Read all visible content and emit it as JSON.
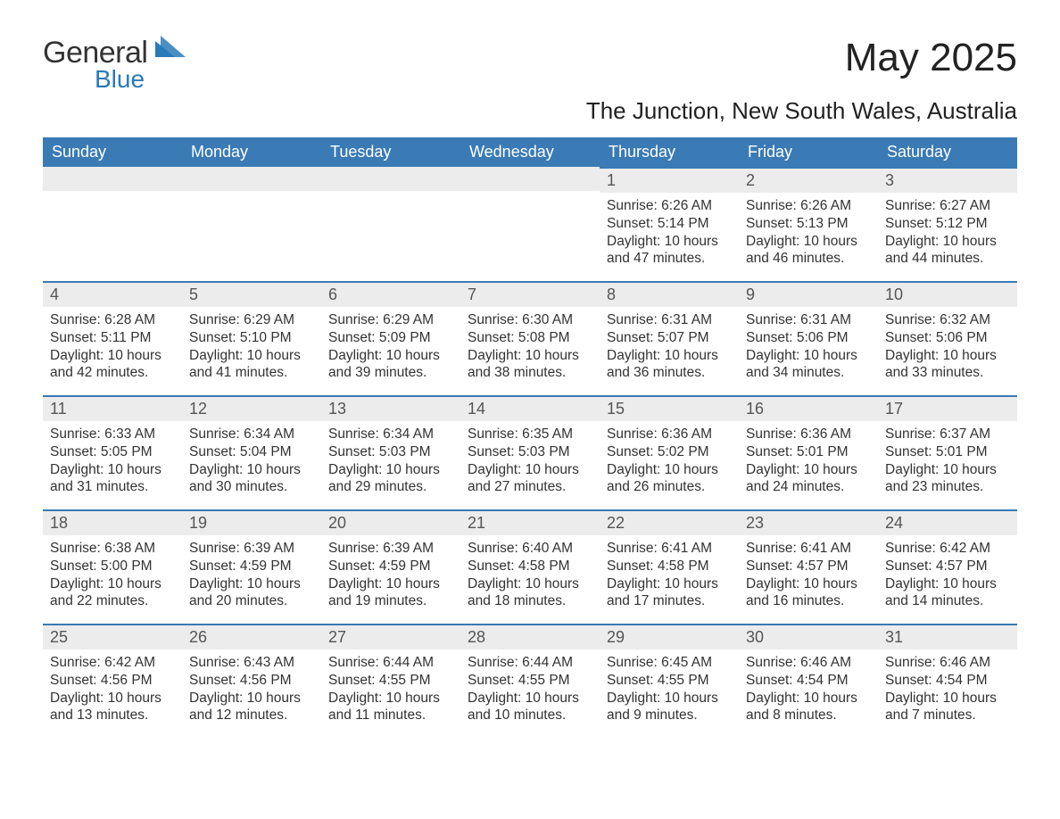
{
  "brand": {
    "word1": "General",
    "word2": "Blue",
    "text_color_1": "#333333",
    "text_color_2": "#2a7ab8",
    "icon_color": "#2a7ab8"
  },
  "title": "May 2025",
  "subtitle": "The Junction, New South Wales, Australia",
  "colors": {
    "header_bg": "#3a7ab5",
    "header_text": "#ffffff",
    "daybar_bg": "#ececec",
    "daybar_border": "#3a7ab5",
    "body_bg": "#ffffff",
    "text": "#333333"
  },
  "typography": {
    "title_fontsize": 44,
    "subtitle_fontsize": 26,
    "header_fontsize": 18,
    "daynum_fontsize": 18,
    "body_fontsize": 15.5,
    "font_family": "Arial"
  },
  "calendar": {
    "day_headers": [
      "Sunday",
      "Monday",
      "Tuesday",
      "Wednesday",
      "Thursday",
      "Friday",
      "Saturday"
    ],
    "weeks": [
      [
        {
          "num": "",
          "sunrise": "",
          "sunset": "",
          "daylight": ""
        },
        {
          "num": "",
          "sunrise": "",
          "sunset": "",
          "daylight": ""
        },
        {
          "num": "",
          "sunrise": "",
          "sunset": "",
          "daylight": ""
        },
        {
          "num": "",
          "sunrise": "",
          "sunset": "",
          "daylight": ""
        },
        {
          "num": "1",
          "sunrise": "Sunrise: 6:26 AM",
          "sunset": "Sunset: 5:14 PM",
          "daylight": "Daylight: 10 hours and 47 minutes."
        },
        {
          "num": "2",
          "sunrise": "Sunrise: 6:26 AM",
          "sunset": "Sunset: 5:13 PM",
          "daylight": "Daylight: 10 hours and 46 minutes."
        },
        {
          "num": "3",
          "sunrise": "Sunrise: 6:27 AM",
          "sunset": "Sunset: 5:12 PM",
          "daylight": "Daylight: 10 hours and 44 minutes."
        }
      ],
      [
        {
          "num": "4",
          "sunrise": "Sunrise: 6:28 AM",
          "sunset": "Sunset: 5:11 PM",
          "daylight": "Daylight: 10 hours and 42 minutes."
        },
        {
          "num": "5",
          "sunrise": "Sunrise: 6:29 AM",
          "sunset": "Sunset: 5:10 PM",
          "daylight": "Daylight: 10 hours and 41 minutes."
        },
        {
          "num": "6",
          "sunrise": "Sunrise: 6:29 AM",
          "sunset": "Sunset: 5:09 PM",
          "daylight": "Daylight: 10 hours and 39 minutes."
        },
        {
          "num": "7",
          "sunrise": "Sunrise: 6:30 AM",
          "sunset": "Sunset: 5:08 PM",
          "daylight": "Daylight: 10 hours and 38 minutes."
        },
        {
          "num": "8",
          "sunrise": "Sunrise: 6:31 AM",
          "sunset": "Sunset: 5:07 PM",
          "daylight": "Daylight: 10 hours and 36 minutes."
        },
        {
          "num": "9",
          "sunrise": "Sunrise: 6:31 AM",
          "sunset": "Sunset: 5:06 PM",
          "daylight": "Daylight: 10 hours and 34 minutes."
        },
        {
          "num": "10",
          "sunrise": "Sunrise: 6:32 AM",
          "sunset": "Sunset: 5:06 PM",
          "daylight": "Daylight: 10 hours and 33 minutes."
        }
      ],
      [
        {
          "num": "11",
          "sunrise": "Sunrise: 6:33 AM",
          "sunset": "Sunset: 5:05 PM",
          "daylight": "Daylight: 10 hours and 31 minutes."
        },
        {
          "num": "12",
          "sunrise": "Sunrise: 6:34 AM",
          "sunset": "Sunset: 5:04 PM",
          "daylight": "Daylight: 10 hours and 30 minutes."
        },
        {
          "num": "13",
          "sunrise": "Sunrise: 6:34 AM",
          "sunset": "Sunset: 5:03 PM",
          "daylight": "Daylight: 10 hours and 29 minutes."
        },
        {
          "num": "14",
          "sunrise": "Sunrise: 6:35 AM",
          "sunset": "Sunset: 5:03 PM",
          "daylight": "Daylight: 10 hours and 27 minutes."
        },
        {
          "num": "15",
          "sunrise": "Sunrise: 6:36 AM",
          "sunset": "Sunset: 5:02 PM",
          "daylight": "Daylight: 10 hours and 26 minutes."
        },
        {
          "num": "16",
          "sunrise": "Sunrise: 6:36 AM",
          "sunset": "Sunset: 5:01 PM",
          "daylight": "Daylight: 10 hours and 24 minutes."
        },
        {
          "num": "17",
          "sunrise": "Sunrise: 6:37 AM",
          "sunset": "Sunset: 5:01 PM",
          "daylight": "Daylight: 10 hours and 23 minutes."
        }
      ],
      [
        {
          "num": "18",
          "sunrise": "Sunrise: 6:38 AM",
          "sunset": "Sunset: 5:00 PM",
          "daylight": "Daylight: 10 hours and 22 minutes."
        },
        {
          "num": "19",
          "sunrise": "Sunrise: 6:39 AM",
          "sunset": "Sunset: 4:59 PM",
          "daylight": "Daylight: 10 hours and 20 minutes."
        },
        {
          "num": "20",
          "sunrise": "Sunrise: 6:39 AM",
          "sunset": "Sunset: 4:59 PM",
          "daylight": "Daylight: 10 hours and 19 minutes."
        },
        {
          "num": "21",
          "sunrise": "Sunrise: 6:40 AM",
          "sunset": "Sunset: 4:58 PM",
          "daylight": "Daylight: 10 hours and 18 minutes."
        },
        {
          "num": "22",
          "sunrise": "Sunrise: 6:41 AM",
          "sunset": "Sunset: 4:58 PM",
          "daylight": "Daylight: 10 hours and 17 minutes."
        },
        {
          "num": "23",
          "sunrise": "Sunrise: 6:41 AM",
          "sunset": "Sunset: 4:57 PM",
          "daylight": "Daylight: 10 hours and 16 minutes."
        },
        {
          "num": "24",
          "sunrise": "Sunrise: 6:42 AM",
          "sunset": "Sunset: 4:57 PM",
          "daylight": "Daylight: 10 hours and 14 minutes."
        }
      ],
      [
        {
          "num": "25",
          "sunrise": "Sunrise: 6:42 AM",
          "sunset": "Sunset: 4:56 PM",
          "daylight": "Daylight: 10 hours and 13 minutes."
        },
        {
          "num": "26",
          "sunrise": "Sunrise: 6:43 AM",
          "sunset": "Sunset: 4:56 PM",
          "daylight": "Daylight: 10 hours and 12 minutes."
        },
        {
          "num": "27",
          "sunrise": "Sunrise: 6:44 AM",
          "sunset": "Sunset: 4:55 PM",
          "daylight": "Daylight: 10 hours and 11 minutes."
        },
        {
          "num": "28",
          "sunrise": "Sunrise: 6:44 AM",
          "sunset": "Sunset: 4:55 PM",
          "daylight": "Daylight: 10 hours and 10 minutes."
        },
        {
          "num": "29",
          "sunrise": "Sunrise: 6:45 AM",
          "sunset": "Sunset: 4:55 PM",
          "daylight": "Daylight: 10 hours and 9 minutes."
        },
        {
          "num": "30",
          "sunrise": "Sunrise: 6:46 AM",
          "sunset": "Sunset: 4:54 PM",
          "daylight": "Daylight: 10 hours and 8 minutes."
        },
        {
          "num": "31",
          "sunrise": "Sunrise: 6:46 AM",
          "sunset": "Sunset: 4:54 PM",
          "daylight": "Daylight: 10 hours and 7 minutes."
        }
      ]
    ]
  }
}
